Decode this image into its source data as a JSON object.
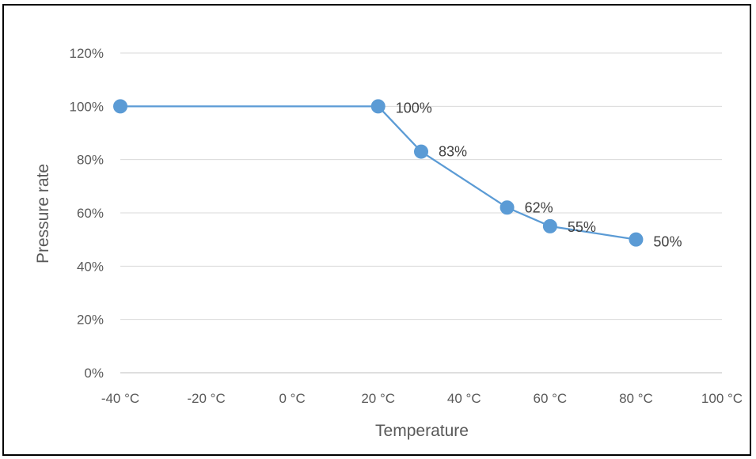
{
  "chart_data": {
    "type": "line",
    "title": "",
    "xlabel": "Temperature",
    "ylabel": "Pressure rate",
    "xlim": [
      -40,
      100
    ],
    "ylim": [
      0,
      120
    ],
    "x_ticks": [
      -40,
      -20,
      0,
      20,
      40,
      60,
      80,
      100
    ],
    "x_tick_labels": [
      "-40 °C",
      "-20 °C",
      "0 °C",
      "20 °C",
      "40 °C",
      "60 °C",
      "80 °C",
      "100 °C"
    ],
    "y_ticks": [
      0,
      20,
      40,
      60,
      80,
      100,
      120
    ],
    "y_tick_labels": [
      "0%",
      "20%",
      "40%",
      "60%",
      "80%",
      "100%",
      "120%"
    ],
    "grid": "horizontal",
    "legend": "none",
    "series": [
      {
        "color": "#5b9bd5",
        "points": [
          {
            "x": -40,
            "y": 100,
            "label": ""
          },
          {
            "x": 20,
            "y": 100,
            "label": "100%"
          },
          {
            "x": 30,
            "y": 83,
            "label": "83%"
          },
          {
            "x": 50,
            "y": 62,
            "label": "62%"
          },
          {
            "x": 60,
            "y": 55,
            "label": "55%"
          },
          {
            "x": 80,
            "y": 50,
            "label": "50%"
          }
        ]
      }
    ]
  },
  "colors": {
    "series": "#5b9bd5",
    "grid": "#d9d9d9",
    "axis": "#bfbfbf",
    "text": "#595959",
    "frame": "#000000"
  }
}
